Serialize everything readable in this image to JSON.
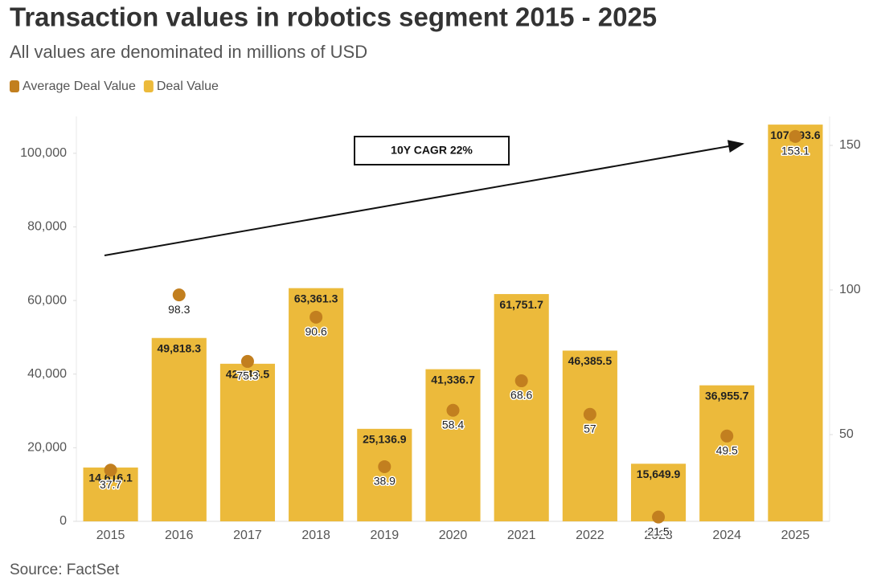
{
  "chart_data": {
    "type": "bar",
    "title": "Transaction values in robotics segment 2015 - 2025",
    "subtitle": "All values are denominated in millions of USD",
    "source": "Source: FactSet",
    "annotations": [
      "10Y CAGR 22%"
    ],
    "categories": [
      "2015",
      "2016",
      "2017",
      "2018",
      "2019",
      "2020",
      "2021",
      "2022",
      "2023",
      "2024",
      "2025"
    ],
    "series": [
      {
        "name": "Average Deal Value",
        "type": "scatter",
        "axis": "y2",
        "color": "#c27f1f",
        "values": [
          37.7,
          98.3,
          75.3,
          90.6,
          38.9,
          58.4,
          68.6,
          57,
          21.5,
          49.5,
          153.1
        ]
      },
      {
        "name": "Deal Value",
        "type": "bar",
        "color": "#ecba3b",
        "values": [
          14616.1,
          49818.3,
          42816.5,
          63361.3,
          25136.9,
          41336.7,
          61751.7,
          46385.5,
          15649.9,
          36955.7,
          107793.6
        ],
        "value_labels": [
          "14,616.1",
          "49,818.3",
          "42,816.5",
          "63,361.3",
          "25,136.9",
          "41,336.7",
          "61,751.7",
          "46,385.5",
          "15,649.9",
          "36,955.7",
          "107,793.6"
        ]
      }
    ],
    "ylim": [
      0,
      110000
    ],
    "yticks": [
      0,
      {
        "value": 20000,
        "label": "20,000"
      },
      {
        "value": 40000,
        "label": "40,000"
      },
      {
        "value": 60000,
        "label": "60,000"
      },
      {
        "value": 80000,
        "label": "80,000"
      },
      {
        "value": 100000,
        "label": "100,000"
      }
    ],
    "y2lim": [
      20,
      160
    ],
    "y2ticks": [
      50,
      100,
      150
    ],
    "legend": "top-left"
  }
}
